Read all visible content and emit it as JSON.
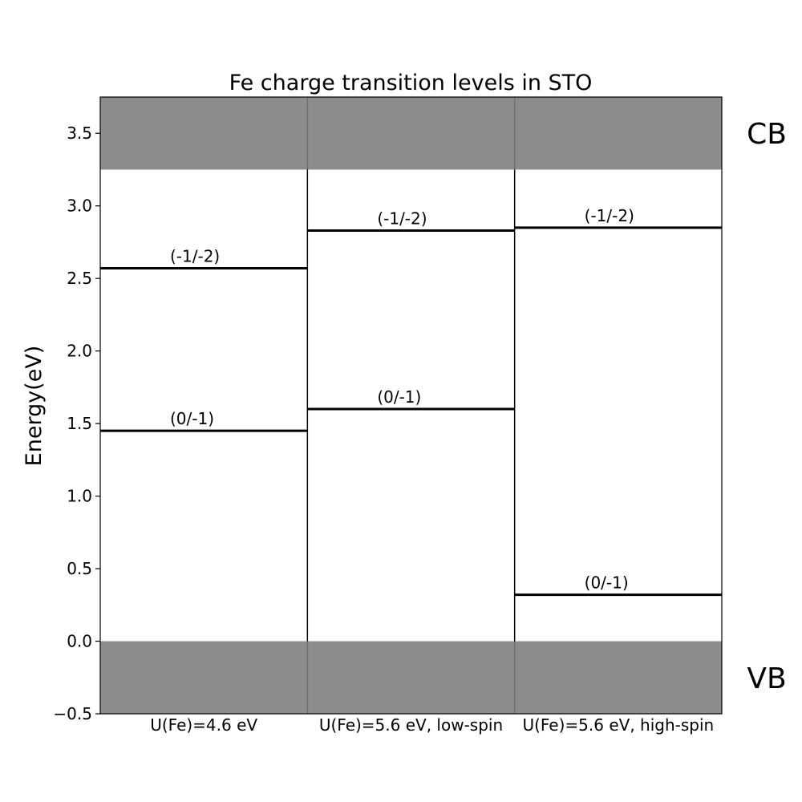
{
  "chart_data": {
    "type": "energy-level-diagram",
    "title": "Fe charge transition levels in STO",
    "xlabel": "",
    "ylabel": "Energy(eV)",
    "ylim": [
      -0.5,
      3.75
    ],
    "yticks": [
      -0.5,
      0.0,
      0.5,
      1.0,
      1.5,
      2.0,
      2.5,
      3.0,
      3.5
    ],
    "ytick_labels": [
      "−0.5",
      "0.0",
      "0.5",
      "1.0",
      "1.5",
      "2.0",
      "2.5",
      "3.0",
      "3.5"
    ],
    "grid": false,
    "bands": {
      "cb": {
        "label": "CB",
        "from": 3.25,
        "to": 3.75,
        "color": "#8c8c8c"
      },
      "vb": {
        "label": "VB",
        "from": -0.5,
        "to": 0.0,
        "color": "#8c8c8c"
      }
    },
    "categories": [
      "U(Fe)=4.6 eV",
      "U(Fe)=5.6 eV, low-spin",
      "U(Fe)=5.6 eV, high-spin"
    ],
    "levels": [
      [
        {
          "label": "(0/-1)",
          "value": 1.45
        },
        {
          "label": "(-1/-2)",
          "value": 2.57
        }
      ],
      [
        {
          "label": "(0/-1)",
          "value": 1.6
        },
        {
          "label": "(-1/-2)",
          "value": 2.83
        }
      ],
      [
        {
          "label": "(0/-1)",
          "value": 0.32
        },
        {
          "label": "(-1/-2)",
          "value": 2.85
        }
      ]
    ]
  }
}
